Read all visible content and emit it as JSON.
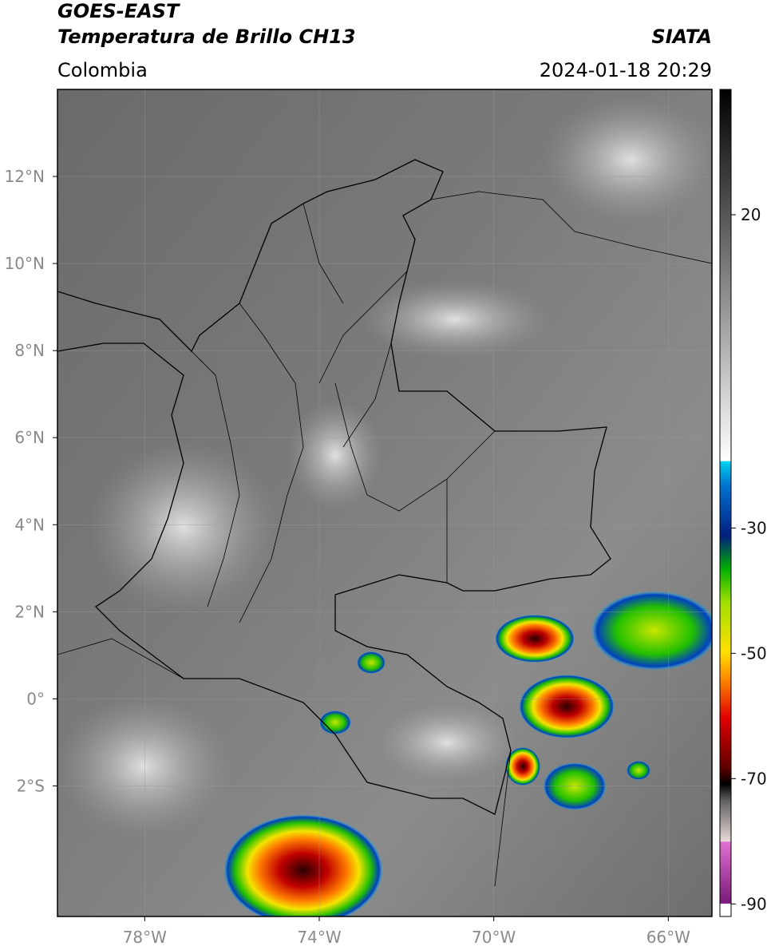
{
  "header": {
    "title": "GOES-EAST",
    "subtitle": "Temperatura de Brillo CH13",
    "region": "Colombia",
    "source": "SIATA",
    "datetime": "2024-01-18 20:29"
  },
  "map": {
    "xlim": [
      -80,
      -65
    ],
    "ylim": [
      -5,
      14
    ],
    "xticks": [
      {
        "value": -78,
        "label": "78°W"
      },
      {
        "value": -74,
        "label": "74°W"
      },
      {
        "value": -70,
        "label": "70°W"
      },
      {
        "value": -66,
        "label": "66°W"
      }
    ],
    "yticks": [
      {
        "value": 12,
        "label": "12°N"
      },
      {
        "value": 10,
        "label": "10°N"
      },
      {
        "value": 8,
        "label": "8°N"
      },
      {
        "value": 6,
        "label": "6°N"
      },
      {
        "value": 4,
        "label": "4°N"
      },
      {
        "value": 2,
        "label": "2°N"
      },
      {
        "value": 0,
        "label": "0°"
      },
      {
        "value": -2,
        "label": "2°S"
      }
    ],
    "grid": true
  },
  "colorbar": {
    "lim": [
      -92,
      40
    ],
    "ticks": [
      20,
      -30,
      -50,
      -70,
      -90
    ]
  }
}
